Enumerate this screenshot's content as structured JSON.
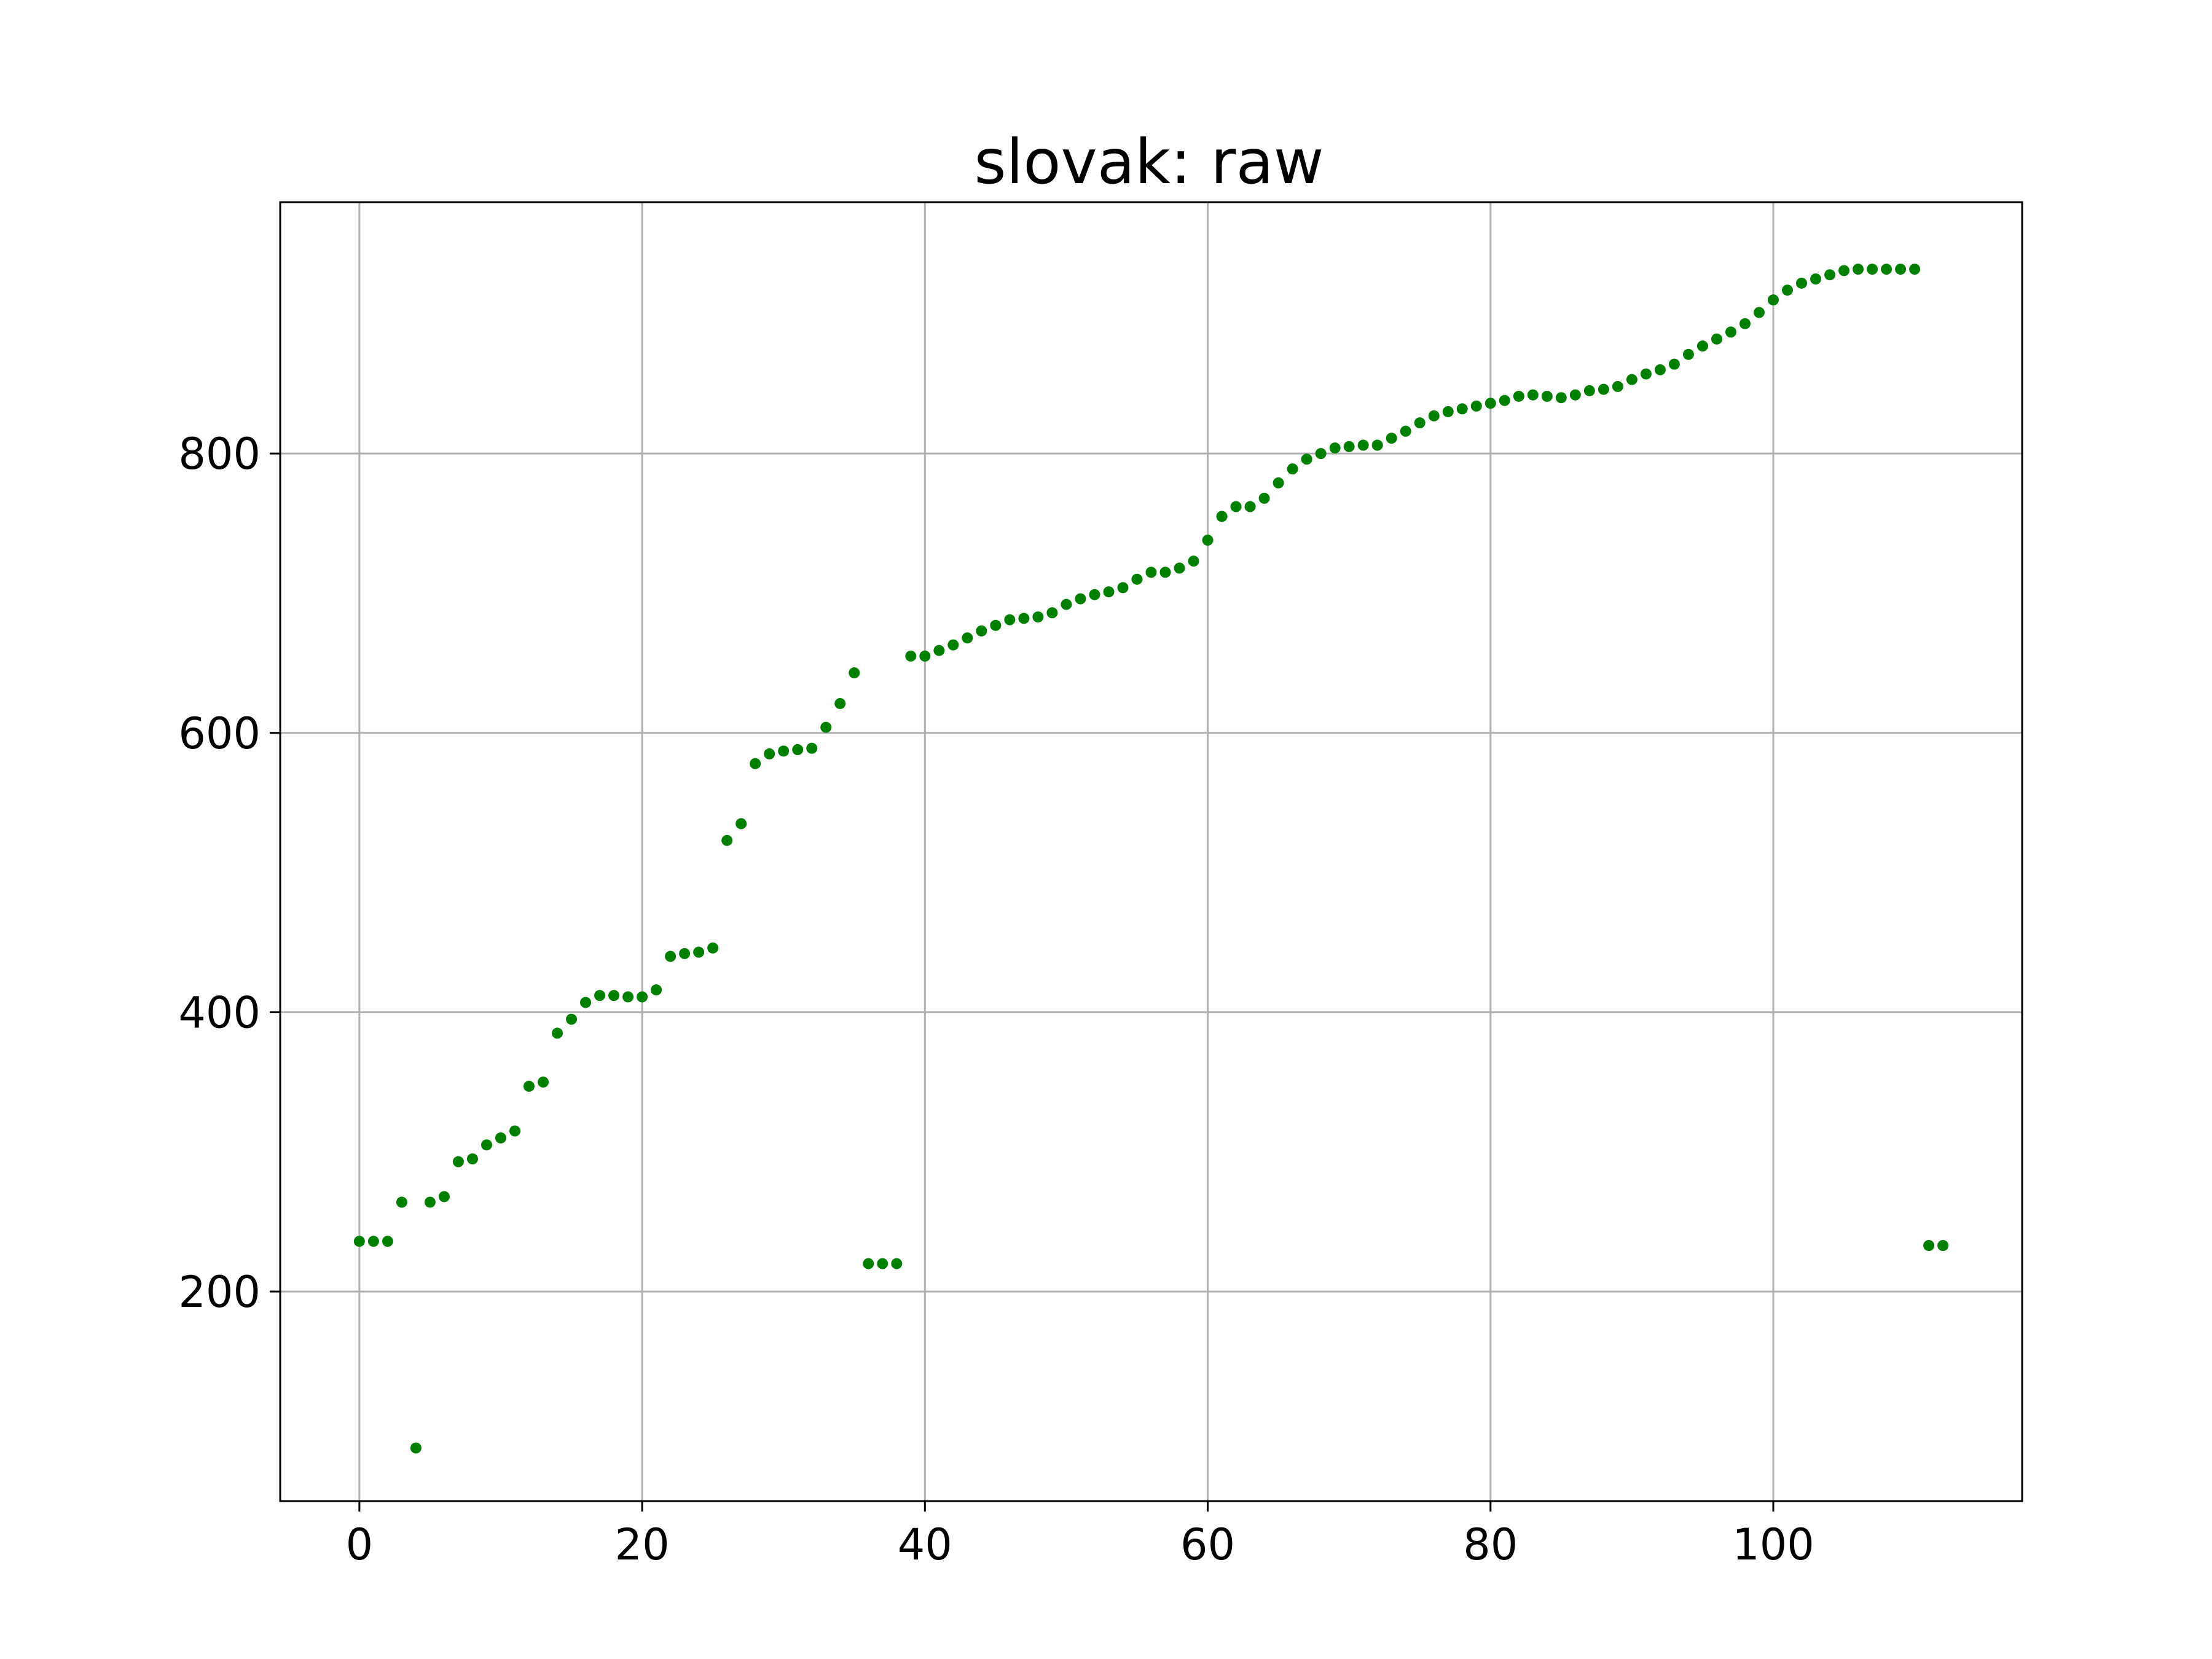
{
  "colors": {
    "point": "#008000",
    "grid": "#b0b0b0",
    "axis": "#000000"
  },
  "chart_data": {
    "type": "scatter",
    "title": "slovak: raw",
    "xlabel": "",
    "ylabel": "",
    "xlim": [
      -5.6,
      117.6
    ],
    "ylim": [
      50,
      980
    ],
    "grid": true,
    "legend": "none",
    "xticks": [
      0,
      20,
      40,
      60,
      80,
      100
    ],
    "yticks": [
      200,
      400,
      600,
      800
    ],
    "series": [
      {
        "color": "#008000",
        "x": [
          0,
          1,
          2,
          3,
          4,
          5,
          6,
          7,
          8,
          9,
          10,
          11,
          12,
          13,
          14,
          15,
          16,
          17,
          18,
          19,
          20,
          21,
          22,
          23,
          24,
          25,
          26,
          27,
          28,
          29,
          30,
          31,
          32,
          33,
          34,
          35,
          36,
          37,
          38,
          39,
          40,
          41,
          42,
          43,
          44,
          45,
          46,
          47,
          48,
          49,
          50,
          51,
          52,
          53,
          54,
          55,
          56,
          57,
          58,
          59,
          60,
          61,
          62,
          63,
          64,
          65,
          66,
          67,
          68,
          69,
          70,
          71,
          72,
          73,
          74,
          75,
          76,
          77,
          78,
          79,
          80,
          81,
          82,
          83,
          84,
          85,
          86,
          87,
          88,
          89,
          90,
          91,
          92,
          93,
          94,
          95,
          96,
          97,
          98,
          99,
          100,
          101,
          102,
          103,
          104,
          105,
          106,
          107,
          108,
          109,
          110,
          111,
          112
        ],
        "y": [
          236,
          236,
          236,
          264,
          88,
          264,
          268,
          293,
          295,
          305,
          310,
          315,
          347,
          350,
          385,
          395,
          407,
          412,
          412,
          411,
          411,
          416,
          440,
          442,
          443,
          446,
          523,
          535,
          578,
          585,
          587,
          588,
          589,
          604,
          621,
          643,
          220,
          220,
          220,
          655,
          655,
          659,
          663,
          668,
          673,
          677,
          681,
          682,
          683,
          686,
          692,
          696,
          699,
          701,
          704,
          710,
          715,
          715,
          718,
          723,
          738,
          755,
          762,
          762,
          768,
          779,
          789,
          796,
          800,
          804,
          805,
          806,
          806,
          811,
          816,
          822,
          827,
          830,
          832,
          834,
          836,
          838,
          841,
          842,
          841,
          840,
          842,
          845,
          846,
          848,
          853,
          857,
          860,
          864,
          871,
          877,
          882,
          887,
          893,
          901,
          910,
          917,
          922,
          925,
          928,
          931,
          932,
          932,
          932,
          932,
          932,
          233,
          233
        ]
      }
    ]
  }
}
